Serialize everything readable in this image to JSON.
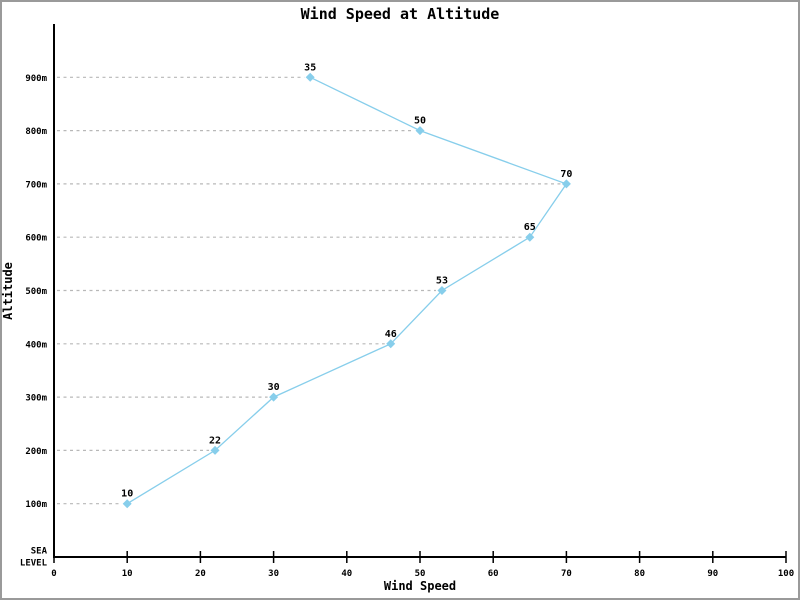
{
  "window": {
    "background_color": "#ffffff",
    "border_color": "#9a9a9a"
  },
  "chart_data": {
    "type": "line",
    "title": "Wind Speed at Altitude",
    "xlabel": "Wind Speed",
    "ylabel": "Altitude",
    "xlim": [
      0,
      100
    ],
    "ylim": [
      0,
      1000
    ],
    "x_ticks": [
      0,
      10,
      20,
      30,
      40,
      50,
      60,
      70,
      80,
      90,
      100
    ],
    "y_ticks": [
      {
        "altitude": 0,
        "label": "SEA LEVEL"
      },
      {
        "altitude": 100,
        "label": "100m"
      },
      {
        "altitude": 200,
        "label": "200m"
      },
      {
        "altitude": 300,
        "label": "300m"
      },
      {
        "altitude": 400,
        "label": "400m"
      },
      {
        "altitude": 500,
        "label": "500m"
      },
      {
        "altitude": 600,
        "label": "600m"
      },
      {
        "altitude": 700,
        "label": "700m"
      },
      {
        "altitude": 800,
        "label": "800m"
      },
      {
        "altitude": 900,
        "label": "900m"
      }
    ],
    "series": [
      {
        "name": "Wind Speed",
        "color": "#87CEEB",
        "marker": "diamond",
        "points": [
          {
            "altitude": 100,
            "wind_speed": 10
          },
          {
            "altitude": 200,
            "wind_speed": 22
          },
          {
            "altitude": 300,
            "wind_speed": 30
          },
          {
            "altitude": 400,
            "wind_speed": 46
          },
          {
            "altitude": 500,
            "wind_speed": 53
          },
          {
            "altitude": 600,
            "wind_speed": 65
          },
          {
            "altitude": 700,
            "wind_speed": 70
          },
          {
            "altitude": 800,
            "wind_speed": 50
          },
          {
            "altitude": 900,
            "wind_speed": 35
          }
        ]
      }
    ],
    "data_labels": [
      10,
      22,
      30,
      46,
      53,
      65,
      70,
      50,
      35
    ],
    "leader_line_color": "#b8b8b8",
    "leader_line_style": "dashed",
    "axis_color": "#000000",
    "legend": "none",
    "grid": "dashed horizontal leader lines from y-axis to each data point"
  }
}
